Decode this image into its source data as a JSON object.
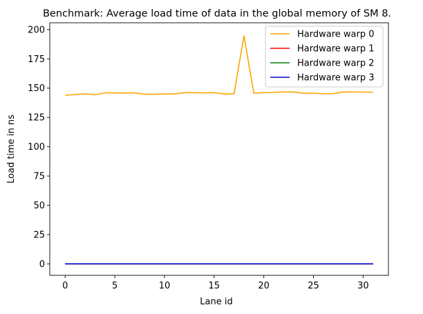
{
  "chart_data": {
    "type": "line",
    "title": "Benchmark: Average load time of data in the global memory of SM 8.",
    "xlabel": "Lane id",
    "ylabel": "Load time in ns",
    "xlim": [
      -1.55,
      32.55
    ],
    "ylim": [
      -9.8,
      205.8
    ],
    "xticks": [
      0,
      5,
      10,
      15,
      20,
      25,
      30
    ],
    "yticks": [
      0,
      25,
      50,
      75,
      100,
      125,
      150,
      175,
      200
    ],
    "grid": false,
    "legend_position": "top-right",
    "x": [
      0,
      1,
      2,
      3,
      4,
      5,
      6,
      7,
      8,
      9,
      10,
      11,
      12,
      13,
      14,
      15,
      16,
      17,
      18,
      19,
      20,
      21,
      22,
      23,
      24,
      25,
      26,
      27,
      28,
      29,
      30,
      31
    ],
    "series": [
      {
        "name": "Hardware warp 0",
        "color": "#ffa500",
        "values": [
          143.8,
          144.6,
          145.1,
          144.4,
          146.0,
          146.0,
          145.8,
          146.0,
          144.8,
          144.8,
          145.1,
          145.1,
          146.1,
          146.1,
          146.0,
          146.1,
          145.1,
          145.1,
          194.6,
          145.7,
          146.2,
          146.3,
          146.7,
          146.7,
          145.7,
          145.7,
          145.2,
          145.4,
          146.7,
          146.7,
          146.6,
          146.5
        ]
      },
      {
        "name": "Hardware warp 1",
        "color": "#ff0000",
        "values": [
          0,
          0,
          0,
          0,
          0,
          0,
          0,
          0,
          0,
          0,
          0,
          0,
          0,
          0,
          0,
          0,
          0,
          0,
          0,
          0,
          0,
          0,
          0,
          0,
          0,
          0,
          0,
          0,
          0,
          0,
          0,
          0
        ]
      },
      {
        "name": "Hardware warp 2",
        "color": "#008000",
        "values": [
          0,
          0,
          0,
          0,
          0,
          0,
          0,
          0,
          0,
          0,
          0,
          0,
          0,
          0,
          0,
          0,
          0,
          0,
          0,
          0,
          0,
          0,
          0,
          0,
          0,
          0,
          0,
          0,
          0,
          0,
          0,
          0
        ]
      },
      {
        "name": "Hardware warp 3",
        "color": "#0000cd",
        "values": [
          0,
          0,
          0,
          0,
          0,
          0,
          0,
          0,
          0,
          0,
          0,
          0,
          0,
          0,
          0,
          0,
          0,
          0,
          0,
          0,
          0,
          0,
          0,
          0,
          0,
          0,
          0,
          0,
          0,
          0,
          0,
          0
        ]
      }
    ]
  }
}
